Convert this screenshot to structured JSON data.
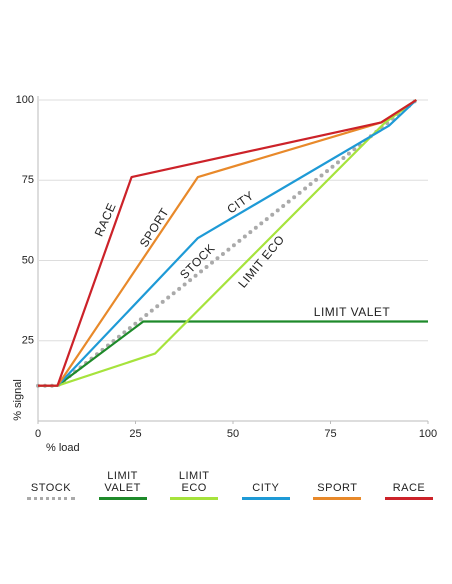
{
  "chart_data": {
    "type": "line",
    "x_label": "% load",
    "y_label": "% signal",
    "xlim": [
      0,
      100
    ],
    "ylim": [
      0,
      100
    ],
    "xticks": [
      0,
      25,
      50,
      75,
      100
    ],
    "yticks": [
      25,
      50,
      75,
      100
    ],
    "grid": true,
    "series": [
      {
        "name": "STOCK",
        "color": "#aaaaaa",
        "dotted": true,
        "x": [
          0,
          5,
          97
        ],
        "values": [
          11,
          11,
          100
        ]
      },
      {
        "name": "LIMIT VALET",
        "color": "#1e8a2a",
        "x": [
          0,
          5,
          27,
          100
        ],
        "values": [
          11,
          11,
          31,
          31
        ]
      },
      {
        "name": "LIMIT ECO",
        "color": "#a6e33c",
        "x": [
          0,
          5,
          30,
          89,
          97
        ],
        "values": [
          11,
          11,
          21,
          93,
          100
        ]
      },
      {
        "name": "CITY",
        "color": "#1e9ad6",
        "x": [
          0,
          5,
          41,
          90,
          97
        ],
        "values": [
          11,
          11,
          57,
          92,
          100
        ]
      },
      {
        "name": "SPORT",
        "color": "#e8892a",
        "x": [
          0,
          5,
          41,
          88,
          97
        ],
        "values": [
          11,
          11,
          76,
          93,
          100
        ]
      },
      {
        "name": "RACE",
        "color": "#cc2229",
        "x": [
          0,
          5,
          24,
          88,
          97
        ],
        "values": [
          11,
          11,
          76,
          93,
          100
        ]
      }
    ]
  }
}
